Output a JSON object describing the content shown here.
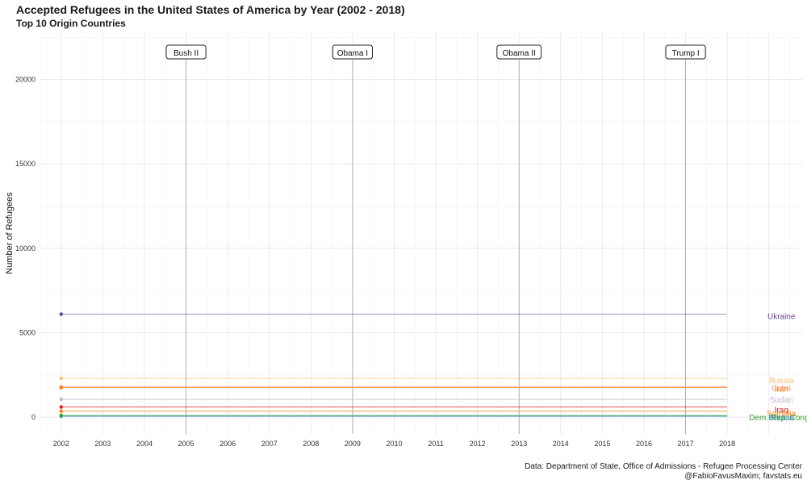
{
  "header": {
    "title": "Accepted Refugees in the United States of America by Year (2002 - 2018)",
    "subtitle": "Top 10 Origin Countries"
  },
  "caption": {
    "line1": "Data: Department of State, Office of Admissions - Refugee Processing Center",
    "line2": "@FabioFavusMaxim; favstats.eu"
  },
  "chart_data": {
    "type": "line",
    "title": "Accepted Refugees in the United States of America by Year (2002 - 2018)",
    "subtitle": "Top 10 Origin Countries",
    "xlabel": "",
    "ylabel": "Number of Refugees",
    "x_ticks": [
      2002,
      2003,
      2004,
      2005,
      2006,
      2007,
      2008,
      2009,
      2010,
      2011,
      2012,
      2013,
      2014,
      2015,
      2016,
      2017,
      2018
    ],
    "y_ticks": [
      0,
      5000,
      10000,
      15000,
      20000
    ],
    "xlim": [
      2001.5,
      2019.8
    ],
    "ylim": [
      -1000,
      22800
    ],
    "grid": true,
    "legend": "direct labels at right",
    "administrations": [
      {
        "label": "Bush II",
        "year": 2005
      },
      {
        "label": "Obama I",
        "year": 2009
      },
      {
        "label": "Obama II",
        "year": 2013
      },
      {
        "label": "Trump I",
        "year": 2017
      }
    ],
    "series": [
      {
        "name": "Ukraine",
        "color": "#6a3d9a",
        "x": [
          2002,
          2018
        ],
        "values": [
          6100,
          6100
        ],
        "label_value": 6000
      },
      {
        "name": "Russia",
        "color": "#fdbf6f",
        "x": [
          2002,
          2018
        ],
        "values": [
          2300,
          2300
        ],
        "label_value": 2200
      },
      {
        "name": "Cuba",
        "color": "#fb9a99",
        "x": [
          2002,
          2018
        ],
        "values": [
          1800,
          1800
        ],
        "label_value": 1750
      },
      {
        "name": "Iran",
        "color": "#ff7f00",
        "x": [
          2002,
          2018
        ],
        "values": [
          1750,
          1750
        ],
        "label_value": 1700
      },
      {
        "name": "Sudan",
        "color": "#cab2d6",
        "x": [
          2002,
          2018
        ],
        "values": [
          1050,
          1050
        ],
        "label_value": 1050
      },
      {
        "name": "Iraq",
        "color": "#e31a1c",
        "x": [
          2002,
          2018
        ],
        "values": [
          600,
          600
        ],
        "label_value": 450
      },
      {
        "name": "Somalia",
        "color": "#ff7f00",
        "x": [
          2002,
          2018
        ],
        "values": [
          350,
          350
        ],
        "label_value": 250
      },
      {
        "name": "Bhutan",
        "color": "#1f78b4",
        "x": [
          2002,
          2018
        ],
        "values": [
          50,
          50
        ],
        "label_value": 0
      },
      {
        "name": "Burma",
        "color": "#a6cee3",
        "x": [
          2002,
          2018
        ],
        "values": [
          80,
          80
        ],
        "label_value": 0
      },
      {
        "name": "Dem. Rep. Congo",
        "color": "#33a02c",
        "x": [
          2002,
          2018
        ],
        "values": [
          100,
          100
        ],
        "label_value": 0
      }
    ]
  }
}
